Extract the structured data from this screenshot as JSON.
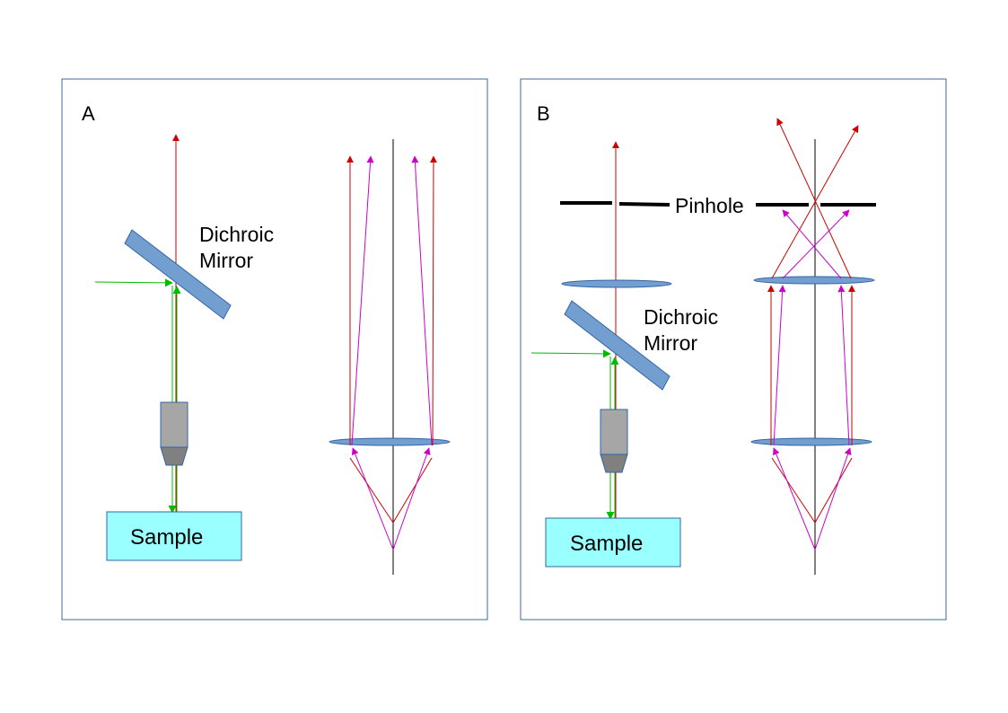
{
  "colors": {
    "panel_border": "#3b6c97",
    "red_ray": "#cc0000",
    "green_ray": "#00bb00",
    "magenta_ray": "#cc00cc",
    "optic_blue": "#729fcf",
    "optic_stroke": "#3465a4",
    "objective_gray": "#a6a6a6",
    "sample_fill": "#99ffff",
    "pinhole": "#000000"
  },
  "panel_a": {
    "label": "A",
    "mirror_label_line1": "Dichroic",
    "mirror_label_line2": "Mirror",
    "sample_label": "Sample"
  },
  "panel_b": {
    "label": "B",
    "pinhole_label": "Pinhole",
    "mirror_label_line1": "Dichroic",
    "mirror_label_line2": "Mirror",
    "sample_label": "Sample"
  }
}
